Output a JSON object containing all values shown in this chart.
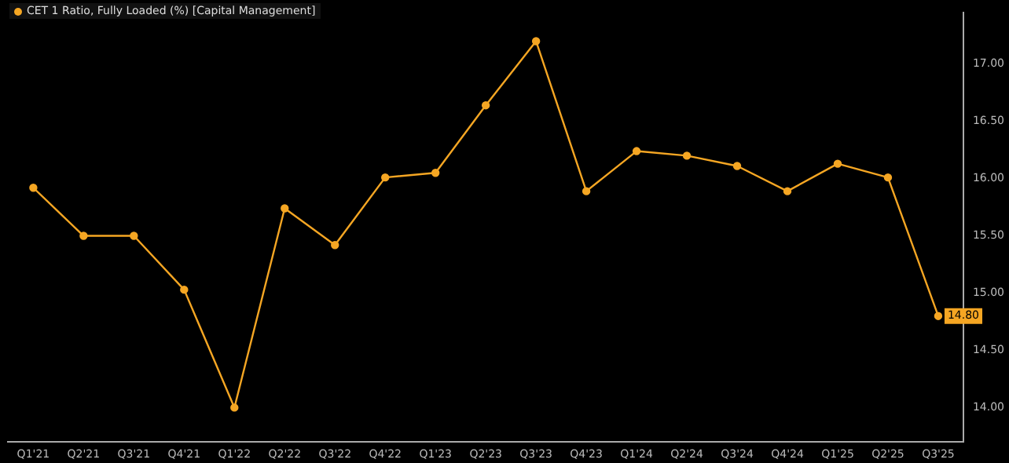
{
  "chart_data": {
    "type": "line",
    "categories": [
      "Q1'21",
      "Q2'21",
      "Q3'21",
      "Q4'21",
      "Q1'22",
      "Q2'22",
      "Q3'22",
      "Q4'22",
      "Q1'23",
      "Q2'23",
      "Q3'23",
      "Q4'23",
      "Q1'24",
      "Q2'24",
      "Q3'24",
      "Q4'24",
      "Q1'25",
      "Q2'25",
      "Q3'25"
    ],
    "series": [
      {
        "name": "CET 1 Ratio, Fully Loaded (%) [Capital Management]",
        "color": "#f5a623",
        "values": [
          15.92,
          15.5,
          15.5,
          15.03,
          14.0,
          15.74,
          15.42,
          16.01,
          16.05,
          16.64,
          17.2,
          15.89,
          16.24,
          16.2,
          16.11,
          15.89,
          16.13,
          16.01,
          14.8
        ],
        "value_labels": [
          null,
          null,
          null,
          null,
          null,
          null,
          null,
          null,
          null,
          null,
          null,
          null,
          null,
          null,
          null,
          null,
          null,
          null,
          "14.80"
        ]
      }
    ],
    "ylim": [
      13.7,
      17.45
    ],
    "yticks": [
      {
        "value": 14,
        "label": "14.00"
      },
      {
        "value": 14.5,
        "label": "14.50"
      },
      {
        "value": 15,
        "label": "15.00"
      },
      {
        "value": 15.5,
        "label": "15.50"
      },
      {
        "value": 16,
        "label": "16.00"
      },
      {
        "value": 16.5,
        "label": "16.50"
      },
      {
        "value": 17,
        "label": "17.00"
      }
    ],
    "grid": false,
    "legend": "top left",
    "marker": "circle",
    "line_style": "solid"
  }
}
